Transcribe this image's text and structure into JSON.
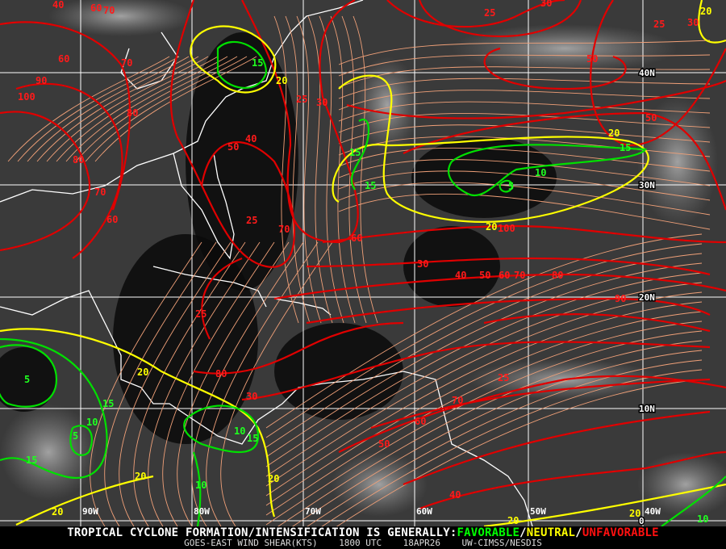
{
  "map": {
    "title": "GOES-EAST WIND SHEAR(KTS)",
    "time": "1800 UTC",
    "date": "18APR26",
    "source": "UW-CIMSS/NESDIS",
    "legend_prefix": "TROPICAL CYCLONE FORMATION/INTENSIFICATION IS GENERALLY:",
    "legend_favorable": "FAVORABLE",
    "legend_neutral": "NEUTRAL",
    "legend_unfavorable": "UNFAVORABLE",
    "separator": "/",
    "colors": {
      "favorable": "#00e000",
      "neutral": "#ffff00",
      "unfavorable": "#e00000",
      "streamlines": "#f0a078",
      "grid": "#ffffff"
    },
    "latitude_labels": [
      "40N",
      "30N",
      "20N",
      "10N",
      "0"
    ],
    "longitude_labels": [
      "90W",
      "80W",
      "70W",
      "60W",
      "50W",
      "40W"
    ],
    "contour_labels_unfavorable": [
      "40",
      "60",
      "70",
      "60",
      "90",
      "100",
      "70",
      "80",
      "80",
      "70",
      "60",
      "50",
      "40",
      "25",
      "30",
      "25",
      "30",
      "50",
      "50",
      "25",
      "70",
      "60",
      "30",
      "40",
      "50",
      "60",
      "70",
      "80",
      "90",
      "100",
      "25",
      "80",
      "30",
      "25",
      "70",
      "60",
      "50",
      "40",
      "30",
      "25"
    ],
    "contour_labels_neutral": [
      "20",
      "20",
      "20",
      "20",
      "20",
      "20",
      "20",
      "20",
      "20",
      "20"
    ],
    "contour_labels_favorable": [
      "15",
      "15",
      "15",
      "10",
      "5",
      "15",
      "5",
      "15",
      "10",
      "5",
      "15",
      "10",
      "15",
      "10",
      "10"
    ]
  }
}
